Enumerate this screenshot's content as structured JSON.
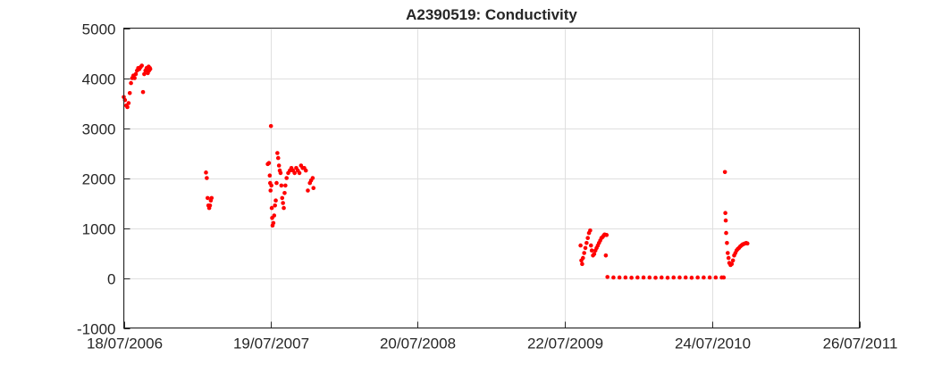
{
  "chart_data": {
    "type": "scatter",
    "title": "A2390519: Conductivity",
    "xlabel": "",
    "ylabel": "",
    "ylim": [
      -1000,
      5000
    ],
    "xlim": [
      "2006-07-18",
      "2011-07-26"
    ],
    "yticks": [
      -1000,
      0,
      1000,
      2000,
      3000,
      4000,
      5000
    ],
    "ytick_labels": [
      "-1000",
      "0",
      "1000",
      "2000",
      "3000",
      "4000",
      "5000"
    ],
    "xticks": [
      "2006-07-18",
      "2007-07-19",
      "2008-07-20",
      "2009-07-22",
      "2010-07-24",
      "2011-07-26"
    ],
    "xtick_labels": [
      "18/07/2006",
      "19/07/2007",
      "20/07/2008",
      "22/07/2009",
      "24/07/2010",
      "26/07/2011"
    ],
    "grid": true,
    "marker_color": "#ff0000",
    "series": [
      {
        "x": [
          "2006-07-18",
          "2006-07-21",
          "2006-07-24",
          "2006-07-27",
          "2006-07-30",
          "2006-08-02",
          "2006-08-05",
          "2006-08-08",
          "2006-08-11",
          "2006-08-14",
          "2006-08-17",
          "2006-08-20",
          "2006-08-23",
          "2006-08-26",
          "2006-08-29",
          "2006-09-01",
          "2006-09-04",
          "2006-09-07",
          "2006-09-10",
          "2006-09-13",
          "2006-09-14",
          "2006-09-16",
          "2006-09-18",
          "2006-09-19",
          "2006-09-21",
          "2006-09-22",
          "2007-02-08",
          "2007-02-10",
          "2007-02-12",
          "2007-02-14",
          "2007-02-16",
          "2007-02-18",
          "2007-02-20",
          "2007-02-22",
          "2007-07-12",
          "2007-07-15",
          "2007-07-17",
          "2007-07-18",
          "2007-07-19",
          "2007-07-20",
          "2007-07-21",
          "2007-07-22",
          "2007-07-23",
          "2007-07-24",
          "2007-07-26",
          "2007-07-28",
          "2007-07-30",
          "2007-08-01",
          "2007-08-03",
          "2007-08-05",
          "2007-08-07",
          "2007-08-09",
          "2007-08-11",
          "2007-08-13",
          "2007-08-15",
          "2007-08-17",
          "2007-08-19",
          "2007-08-21",
          "2007-08-23",
          "2007-08-25",
          "2007-08-28",
          "2007-09-01",
          "2007-09-05",
          "2007-09-09",
          "2007-09-13",
          "2007-09-17",
          "2007-09-21",
          "2007-09-25",
          "2007-09-29",
          "2007-10-03",
          "2007-10-07",
          "2007-10-11",
          "2007-10-15",
          "2007-10-20",
          "2007-10-25",
          "2007-10-28",
          "2007-11-01",
          "2007-11-03",
          "2009-08-30",
          "2009-09-01",
          "2009-09-03",
          "2009-09-05",
          "2009-09-08",
          "2009-09-11",
          "2009-09-14",
          "2009-09-17",
          "2009-09-20",
          "2009-09-23",
          "2009-09-25",
          "2009-09-27",
          "2009-09-30",
          "2009-10-03",
          "2009-10-06",
          "2009-10-09",
          "2009-10-12",
          "2009-10-15",
          "2009-10-18",
          "2009-10-21",
          "2009-10-24",
          "2009-10-27",
          "2009-10-29",
          "2009-11-01",
          "2009-11-03",
          "2009-11-05",
          "2009-11-20",
          "2009-12-05",
          "2009-12-20",
          "2010-01-04",
          "2010-01-19",
          "2010-02-03",
          "2010-02-18",
          "2010-03-05",
          "2010-03-20",
          "2010-04-04",
          "2010-04-19",
          "2010-05-04",
          "2010-05-19",
          "2010-06-03",
          "2010-06-18",
          "2010-07-03",
          "2010-07-18",
          "2010-08-02",
          "2010-08-17",
          "2010-08-22",
          "2010-08-25",
          "2010-08-26",
          "2010-08-27",
          "2010-08-28",
          "2010-08-30",
          "2010-09-01",
          "2010-09-03",
          "2010-09-05",
          "2010-09-08",
          "2010-09-11",
          "2010-09-14",
          "2010-09-17",
          "2010-09-20",
          "2010-09-23",
          "2010-09-26",
          "2010-09-29",
          "2010-10-02",
          "2010-10-05",
          "2010-10-08",
          "2010-10-11",
          "2010-10-14",
          "2010-10-17",
          "2010-10-20"
        ],
        "y": [
          3620,
          3560,
          3450,
          3420,
          3500,
          3700,
          3900,
          4000,
          4050,
          4000,
          4080,
          4150,
          4200,
          4180,
          4220,
          4250,
          3720,
          4080,
          4150,
          4200,
          4180,
          4100,
          4230,
          4150,
          4200,
          4180,
          2110,
          2000,
          1600,
          1450,
          1400,
          1450,
          1550,
          1600,
          2280,
          2300,
          2050,
          1900,
          1750,
          3040,
          1850,
          1400,
          1200,
          1050,
          1100,
          1250,
          1450,
          1550,
          1900,
          2500,
          2400,
          2250,
          2150,
          2100,
          1850,
          1600,
          1500,
          1400,
          1700,
          1850,
          2000,
          2100,
          2150,
          2200,
          2150,
          2100,
          2200,
          2150,
          2100,
          2250,
          2200,
          2200,
          2150,
          1750,
          1900,
          1950,
          2000,
          1800,
          650,
          350,
          280,
          400,
          500,
          600,
          700,
          800,
          900,
          950,
          650,
          550,
          450,
          480,
          550,
          600,
          650,
          700,
          750,
          800,
          820,
          850,
          870,
          450,
          860,
          20,
          10,
          10,
          10,
          5,
          10,
          10,
          10,
          5,
          10,
          5,
          10,
          10,
          10,
          5,
          10,
          10,
          10,
          10,
          10,
          10,
          2120,
          1300,
          1150,
          900,
          700,
          500,
          400,
          300,
          260,
          280,
          350,
          450,
          500,
          550,
          580,
          600,
          630,
          650,
          670,
          680,
          690,
          700,
          690
        ]
      }
    ]
  }
}
